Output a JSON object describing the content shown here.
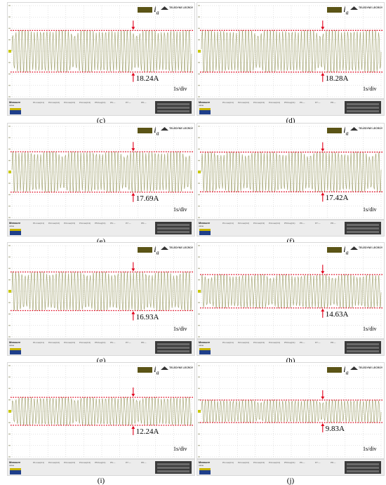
{
  "chart_data": [
    {
      "type": "line",
      "label": "(c)",
      "column": 0,
      "row": 0,
      "current_label": "18.24A",
      "amplitude": 18.24,
      "time_div": "1s/div"
    },
    {
      "type": "line",
      "label": "(d)",
      "column": 1,
      "row": 0,
      "current_label": "18.28A",
      "amplitude": 18.28,
      "time_div": "1s/div"
    },
    {
      "type": "line",
      "label": "(e)",
      "column": 0,
      "row": 1,
      "current_label": "17.69A",
      "amplitude": 17.69,
      "time_div": "1s/div"
    },
    {
      "type": "line",
      "label": "(f)",
      "column": 1,
      "row": 1,
      "current_label": "17.42A",
      "amplitude": 17.42,
      "time_div": "1s/div"
    },
    {
      "type": "line",
      "label": "(g)",
      "column": 0,
      "row": 2,
      "current_label": "16.93A",
      "amplitude": 16.93,
      "time_div": "1s/div"
    },
    {
      "type": "line",
      "label": "(h)",
      "column": 1,
      "row": 2,
      "current_label": "14.63A",
      "amplitude": 14.63,
      "time_div": "1s/div"
    },
    {
      "type": "line",
      "label": "(i)",
      "column": 0,
      "row": 3,
      "current_label": "12.24A",
      "amplitude": 12.24,
      "time_div": "1s/div"
    },
    {
      "type": "line",
      "label": "(j)",
      "column": 1,
      "row": 3,
      "current_label": "9.83A",
      "amplitude": 9.83,
      "time_div": "1s/div"
    }
  ],
  "signal_label": "i",
  "signal_subscript": "a",
  "scope_logo": "TELEDYNE LECROY",
  "measure_title": "Measure",
  "measure_value_label": "value",
  "measure_columns": [
    "P1:max(C1)",
    "P2:max(C2)",
    "P3:max(C3)",
    "P4:max(C4)",
    "P5:freq(C1)",
    "P6:---",
    "P7:---",
    "P8:---"
  ],
  "colors": {
    "trace": "#a8a878",
    "reference_line": "#e0001a",
    "arrow": "#e0001a",
    "grid": "#c9c9c9",
    "swatch": "#5b5416"
  }
}
